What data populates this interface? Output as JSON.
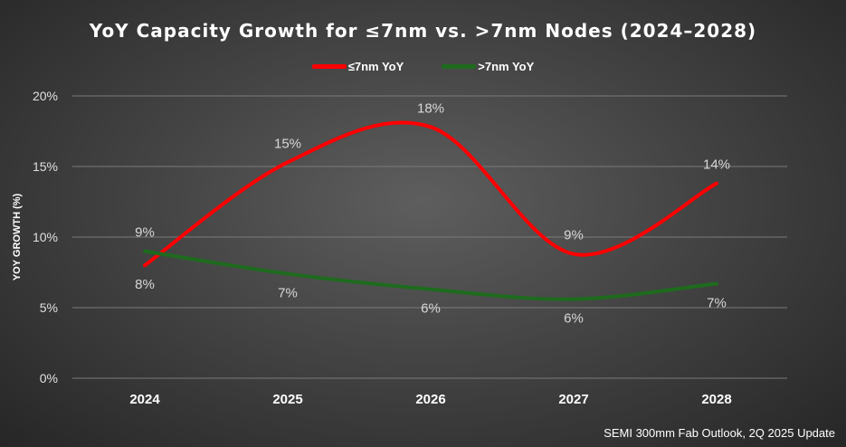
{
  "chart_data": {
    "type": "line",
    "title": "YoY Capacity Growth for ≤7nm vs. >7nm Nodes (2024–2028)",
    "ylabel": "YOY GROWTH (%)",
    "xlabel": "",
    "categories": [
      "2024",
      "2025",
      "2026",
      "2027",
      "2028"
    ],
    "ylim": [
      0,
      20
    ],
    "yticks": [
      "0%",
      "5%",
      "10%",
      "15%",
      "20%"
    ],
    "grid": true,
    "legend_position": "top",
    "smooth": true,
    "series": [
      {
        "name": "≤7nm YoY",
        "color": "#ff0000",
        "values": [
          8.0,
          15.3,
          17.8,
          8.8,
          13.8
        ],
        "labels": [
          "8%",
          "15%",
          "18%",
          "9%",
          "14%"
        ]
      },
      {
        "name": ">7nm YoY",
        "color": "#1e6b1e",
        "values": [
          9.0,
          7.4,
          6.3,
          5.6,
          6.7
        ],
        "labels": [
          "9%",
          "7%",
          "6%",
          "6%",
          "7%"
        ]
      }
    ]
  },
  "source": "SEMI 300mm Fab Outlook,  2Q 2025 Update"
}
